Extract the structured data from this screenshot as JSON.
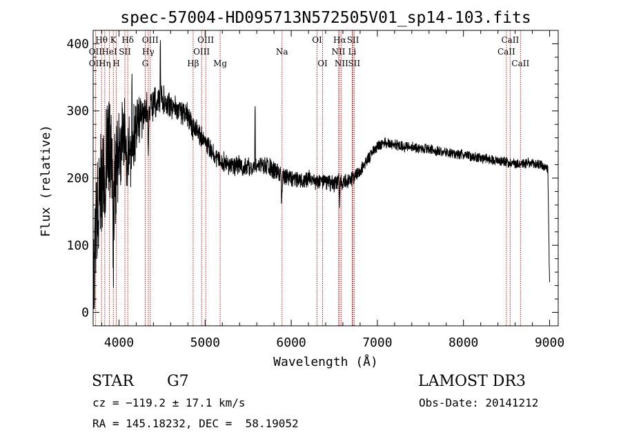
{
  "chart_data": {
    "type": "line",
    "title": "spec-57004-HD095713N572505V01_sp14-103.fits",
    "xlabel": "Wavelength (Å)",
    "ylabel": "Flux (relative)",
    "xlim": [
      3700,
      9100
    ],
    "ylim": [
      -20,
      420
    ],
    "xticks": [
      4000,
      5000,
      6000,
      7000,
      8000,
      9000
    ],
    "yticks": [
      0,
      100,
      200,
      300,
      400
    ],
    "color": "#000000",
    "line_color": "#cc0000",
    "continuum": [
      [
        3700,
        10
      ],
      [
        3720,
        90
      ],
      [
        3750,
        160
      ],
      [
        3800,
        200
      ],
      [
        3850,
        230
      ],
      [
        3900,
        240
      ],
      [
        3950,
        190
      ],
      [
        4000,
        245
      ],
      [
        4050,
        270
      ],
      [
        4100,
        235
      ],
      [
        4150,
        250
      ],
      [
        4200,
        280
      ],
      [
        4300,
        300
      ],
      [
        4400,
        310
      ],
      [
        4500,
        320
      ],
      [
        4600,
        305
      ],
      [
        4700,
        300
      ],
      [
        4800,
        295
      ],
      [
        4850,
        275
      ],
      [
        4900,
        270
      ],
      [
        5000,
        255
      ],
      [
        5100,
        235
      ],
      [
        5200,
        225
      ],
      [
        5300,
        215
      ],
      [
        5400,
        220
      ],
      [
        5500,
        215
      ],
      [
        5600,
        220
      ],
      [
        5700,
        218
      ],
      [
        5800,
        212
      ],
      [
        5900,
        205
      ],
      [
        6000,
        200
      ],
      [
        6100,
        197
      ],
      [
        6200,
        198
      ],
      [
        6300,
        195
      ],
      [
        6400,
        193
      ],
      [
        6500,
        192
      ],
      [
        6600,
        195
      ],
      [
        6700,
        200
      ],
      [
        6800,
        210
      ],
      [
        6900,
        230
      ],
      [
        7000,
        248
      ],
      [
        7100,
        252
      ],
      [
        7200,
        250
      ],
      [
        7300,
        247
      ],
      [
        7400,
        246
      ],
      [
        7500,
        244
      ],
      [
        7600,
        243
      ],
      [
        7700,
        240
      ],
      [
        7800,
        238
      ],
      [
        7900,
        236
      ],
      [
        8000,
        235
      ],
      [
        8100,
        232
      ],
      [
        8200,
        230
      ],
      [
        8300,
        228
      ],
      [
        8400,
        226
      ],
      [
        8500,
        224
      ],
      [
        8600,
        222
      ],
      [
        8700,
        222
      ],
      [
        8800,
        221
      ],
      [
        8900,
        220
      ],
      [
        8980,
        212
      ],
      [
        9000,
        40
      ]
    ],
    "noise": [
      [
        3700,
        80
      ],
      [
        3900,
        95
      ],
      [
        4100,
        70
      ],
      [
        4300,
        30
      ],
      [
        4600,
        22
      ],
      [
        4900,
        18
      ],
      [
        5500,
        16
      ],
      [
        6600,
        14
      ],
      [
        7000,
        9
      ],
      [
        8000,
        8
      ],
      [
        9000,
        9
      ]
    ],
    "features": [
      {
        "wave": 5890,
        "depth": 45,
        "width": 6
      },
      {
        "wave": 6563,
        "depth": 30,
        "width": 6
      },
      {
        "wave": 4340,
        "depth": 60,
        "width": 6
      },
      {
        "wave": 3934,
        "depth": 110,
        "width": 5
      },
      {
        "wave": 4150,
        "depth": -110,
        "width": 3
      },
      {
        "wave": 4480,
        "depth": -90,
        "width": 3
      },
      {
        "wave": 5580,
        "depth": -100,
        "width": 3
      }
    ],
    "annotations": [
      {
        "label": "Hθ",
        "wave": 3797,
        "row": 1
      },
      {
        "label": "OII",
        "wave": 3727,
        "row": 2
      },
      {
        "label": "OII",
        "wave": 3727,
        "row": 3
      },
      {
        "label": "K",
        "wave": 3934,
        "row": 1
      },
      {
        "label": "HeI",
        "wave": 3889,
        "row": 2
      },
      {
        "label": "Hη",
        "wave": 3835,
        "row": 3
      },
      {
        "label": "H",
        "wave": 3969,
        "row": 3
      },
      {
        "label": "Hδ",
        "wave": 4102,
        "row": 1
      },
      {
        "label": "SII",
        "wave": 4069,
        "row": 2
      },
      {
        "label": "OIII",
        "wave": 4363,
        "row": 1
      },
      {
        "label": "Hγ",
        "wave": 4340,
        "row": 2
      },
      {
        "label": "G",
        "wave": 4305,
        "row": 3
      },
      {
        "label": "OIII",
        "wave": 5007,
        "row": 1
      },
      {
        "label": "OIII",
        "wave": 4959,
        "row": 2
      },
      {
        "label": "Hβ",
        "wave": 4861,
        "row": 3
      },
      {
        "label": "Mg",
        "wave": 5175,
        "row": 3
      },
      {
        "label": "Na",
        "wave": 5893,
        "row": 2
      },
      {
        "label": "OI",
        "wave": 6300,
        "row": 1
      },
      {
        "label": "OI",
        "wave": 6364,
        "row": 3
      },
      {
        "label": "Hα",
        "wave": 6563,
        "row": 1
      },
      {
        "label": "NII",
        "wave": 6548,
        "row": 2
      },
      {
        "label": "NII",
        "wave": 6583,
        "row": 3
      },
      {
        "label": "SII",
        "wave": 6717,
        "row": 1
      },
      {
        "label": "Li",
        "wave": 6708,
        "row": 2
      },
      {
        "label": "SII",
        "wave": 6731,
        "row": 3
      },
      {
        "label": "CaII",
        "wave": 8542,
        "row": 1
      },
      {
        "label": "CaII",
        "wave": 8498,
        "row": 2
      },
      {
        "label": "CaII",
        "wave": 8662,
        "row": 3
      }
    ]
  },
  "info": {
    "object_class": "STAR",
    "subclass": "G7",
    "survey": "LAMOST DR3",
    "cz": "cz = −119.2 ± 17.1 km/s",
    "obs_date": "Obs-Date: 20141212",
    "coords": "RA = 145.18232, DEC =  58.19052"
  }
}
